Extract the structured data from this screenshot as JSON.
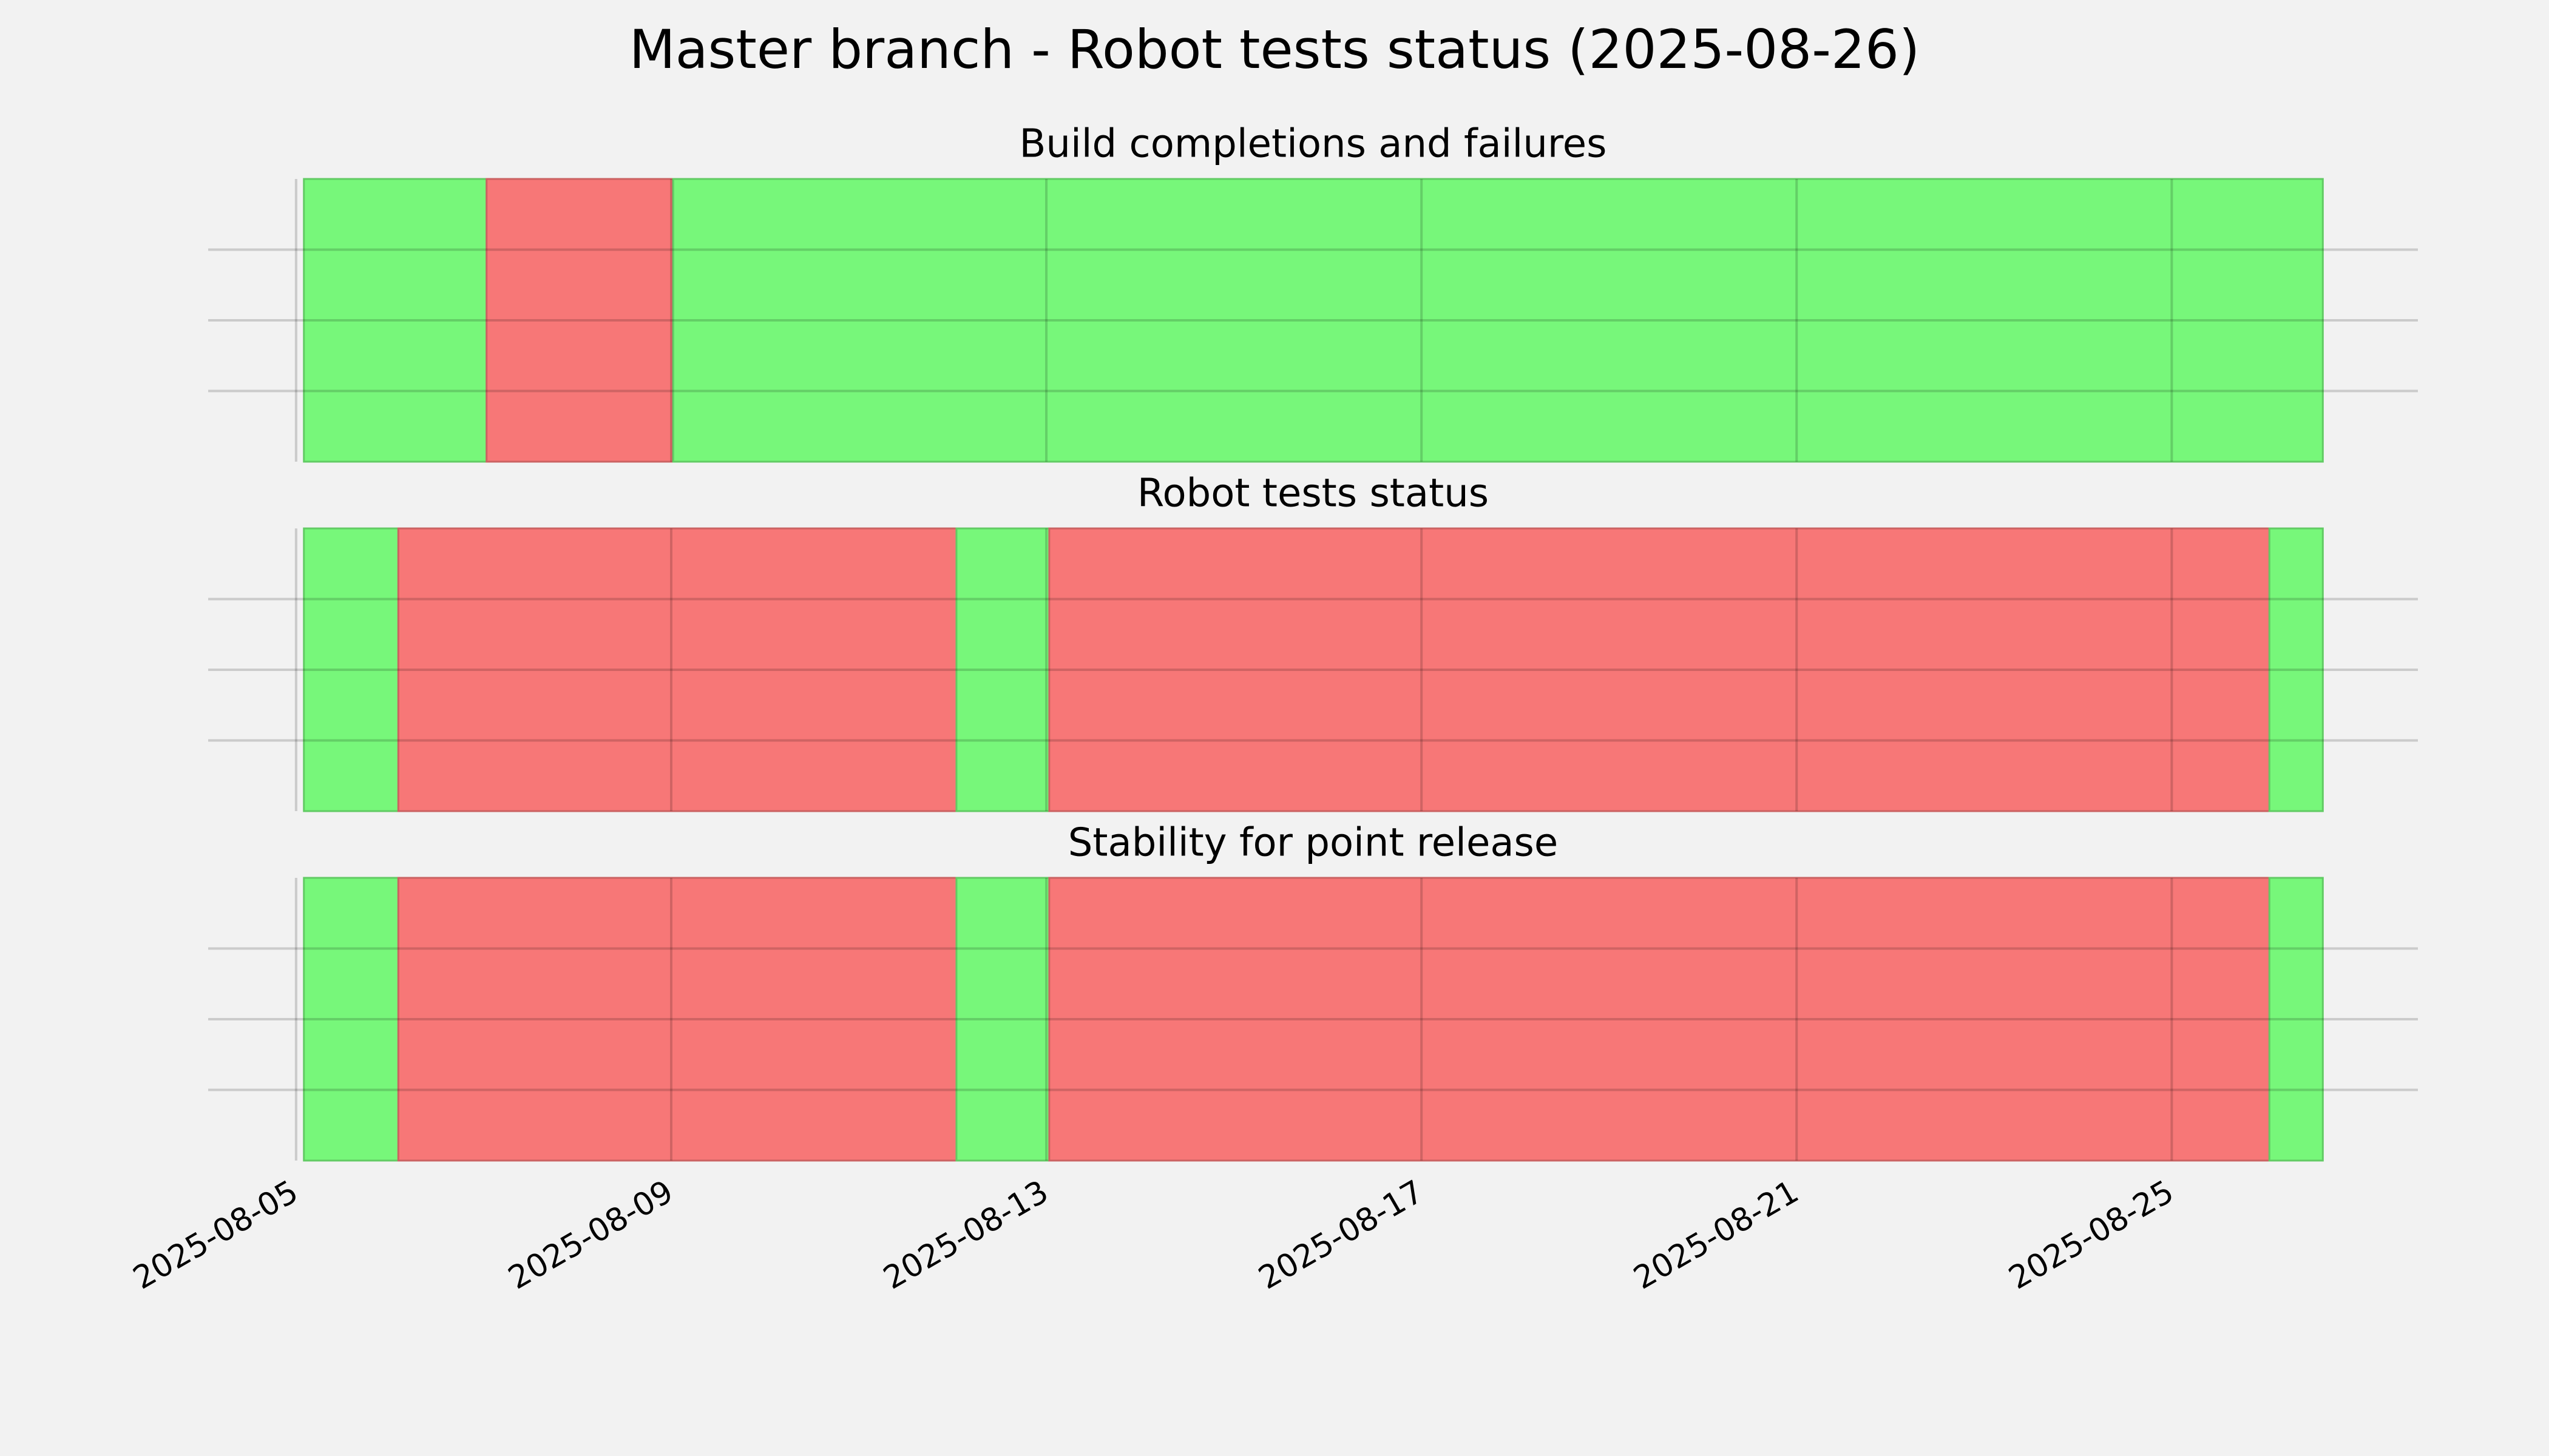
{
  "title": "Master branch - Robot tests status (2025-08-26)",
  "xlim": [
    "2025-08-04T01:30",
    "2025-08-27T15:00"
  ],
  "xticks": [
    "2025-08-05",
    "2025-08-09",
    "2025-08-13",
    "2025-08-17",
    "2025-08-21",
    "2025-08-25"
  ],
  "chart_data": [
    {
      "type": "span",
      "title": "Build completions and failures",
      "ylim": [
        0,
        1
      ],
      "yticks": [
        0.25,
        0.5,
        0.75
      ],
      "grid": true,
      "segments": [
        {
          "start": "2025-08-05T02:00",
          "end": "2025-08-07T00:45",
          "color": "#77f77a"
        },
        {
          "start": "2025-08-07T00:45",
          "end": "2025-08-09T00:30",
          "color": "#f77777"
        },
        {
          "start": "2025-08-09T00:30",
          "end": "2025-08-26T14:40",
          "color": "#77f77a"
        }
      ]
    },
    {
      "type": "span",
      "title": "Robot tests status",
      "ylim": [
        0,
        1
      ],
      "yticks": [
        0.25,
        0.5,
        0.75
      ],
      "grid": true,
      "segments": [
        {
          "start": "2025-08-05T02:00",
          "end": "2025-08-06T02:10",
          "color": "#77f77a"
        },
        {
          "start": "2025-08-06T02:10",
          "end": "2025-08-12T01:00",
          "color": "#f77777"
        },
        {
          "start": "2025-08-12T01:00",
          "end": "2025-08-13T00:45",
          "color": "#77f77a"
        },
        {
          "start": "2025-08-13T00:45",
          "end": "2025-08-26T01:00",
          "color": "#f77777"
        },
        {
          "start": "2025-08-26T01:00",
          "end": "2025-08-26T14:40",
          "color": "#77f77a"
        }
      ]
    },
    {
      "type": "span",
      "title": "Stability for point release",
      "ylim": [
        0,
        1
      ],
      "yticks": [
        0.25,
        0.5,
        0.75
      ],
      "grid": true,
      "segments": [
        {
          "start": "2025-08-05T02:00",
          "end": "2025-08-06T02:10",
          "color": "#77f77a"
        },
        {
          "start": "2025-08-06T02:10",
          "end": "2025-08-12T01:00",
          "color": "#f77777"
        },
        {
          "start": "2025-08-12T01:00",
          "end": "2025-08-13T00:45",
          "color": "#77f77a"
        },
        {
          "start": "2025-08-13T00:45",
          "end": "2025-08-26T01:00",
          "color": "#f77777"
        },
        {
          "start": "2025-08-26T01:00",
          "end": "2025-08-26T14:40",
          "color": "#77f77a"
        }
      ]
    }
  ]
}
